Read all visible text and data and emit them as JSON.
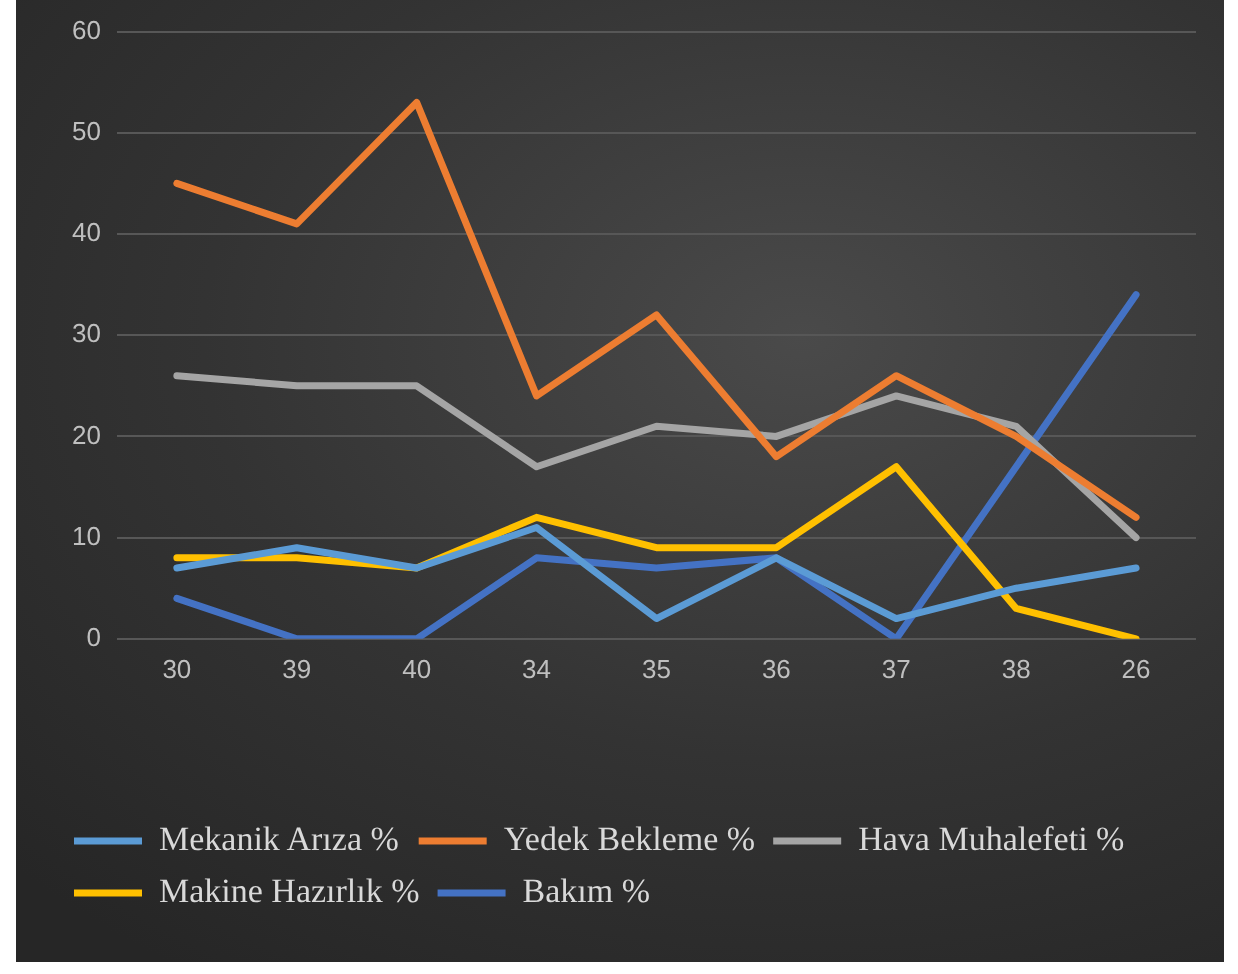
{
  "chart_data": {
    "type": "line",
    "categories": [
      "30",
      "39",
      "40",
      "34",
      "35",
      "36",
      "37",
      "38",
      "26"
    ],
    "series": [
      {
        "name": "Mekanik Arıza %",
        "color": "#5b9bd5",
        "values": [
          7,
          9,
          7,
          11,
          2,
          8,
          2,
          5,
          7
        ]
      },
      {
        "name": "Yedek Bekleme %",
        "color": "#ed7d31",
        "values": [
          45,
          41,
          53,
          24,
          32,
          18,
          26,
          20,
          12
        ]
      },
      {
        "name": "Hava Muhalefeti %",
        "color": "#a5a5a5",
        "values": [
          26,
          25,
          25,
          17,
          21,
          20,
          24,
          21,
          10
        ]
      },
      {
        "name": "Makine Hazırlık %",
        "color": "#ffc000",
        "values": [
          8,
          8,
          7,
          12,
          9,
          9,
          17,
          3,
          0
        ]
      },
      {
        "name": "Bakım %",
        "color": "#4472c4",
        "values": [
          4,
          0,
          0,
          8,
          7,
          8,
          0,
          17,
          34
        ]
      }
    ],
    "ylim": [
      0,
      60
    ],
    "yticks": [
      0,
      10,
      20,
      30,
      40,
      50,
      60
    ],
    "grid": "y",
    "legend": "bottom",
    "marker": "none",
    "line_style": "solid"
  }
}
